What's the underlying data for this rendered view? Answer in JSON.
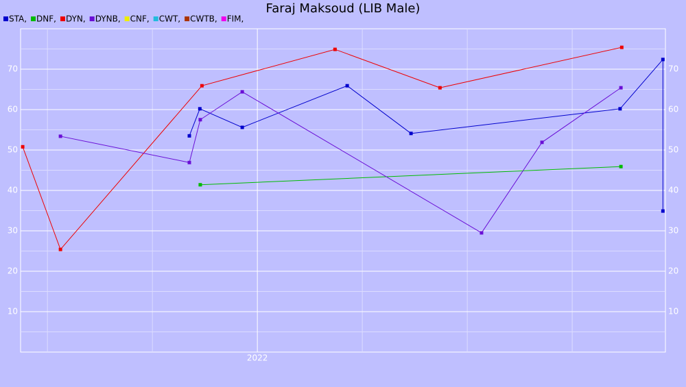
{
  "chart_data": {
    "type": "line",
    "title": "Faraj Maksoud (LIB Male)",
    "xlim": [
      2021.436,
      2022.972
    ],
    "xticks": [
      2022
    ],
    "xminor": [
      2021.5,
      2021.75,
      2022.25,
      2022.5,
      2022.75
    ],
    "ylim": [
      0,
      80
    ],
    "yticks": [
      10,
      20,
      30,
      40,
      50,
      60,
      70
    ],
    "yminor": [
      5,
      15,
      25,
      35,
      45,
      55,
      65,
      75
    ],
    "grid": true,
    "legend": "top-left",
    "series": [
      {
        "name": "STA,",
        "color": "#0000cc",
        "x": [
          2021.838,
          2021.863,
          2021.964,
          2022.214,
          2022.366,
          2022.864,
          2022.966,
          2022.966
        ],
        "values": [
          53.5,
          60.2,
          55.6,
          65.9,
          54.1,
          60.2,
          72.4,
          34.9
        ]
      },
      {
        "name": "DNF,",
        "color": "#00bb00",
        "x": [
          2021.864,
          2022.866
        ],
        "values": [
          41.4,
          45.9
        ]
      },
      {
        "name": "DYN,",
        "color": "#ee0000",
        "x": [
          2021.441,
          2021.531,
          2021.868,
          2022.185,
          2022.435,
          2022.868
        ],
        "values": [
          50.8,
          25.4,
          65.9,
          74.9,
          65.4,
          75.4
        ]
      },
      {
        "name": "DYNB,",
        "color": "#6a0fd6",
        "x": [
          2021.531,
          2021.838,
          2021.864,
          2021.964,
          2022.534,
          2022.678,
          2022.866
        ],
        "values": [
          53.4,
          46.9,
          57.5,
          64.4,
          29.5,
          51.9,
          65.4
        ]
      },
      {
        "name": "CNF,",
        "color": "#eeee00",
        "x": [],
        "values": []
      },
      {
        "name": "CWT,",
        "color": "#22bbdd",
        "x": [],
        "values": []
      },
      {
        "name": "CWTB,",
        "color": "#aa3300",
        "x": [],
        "values": []
      },
      {
        "name": "FIM,",
        "color": "#ee00ee",
        "x": [],
        "values": []
      }
    ]
  }
}
